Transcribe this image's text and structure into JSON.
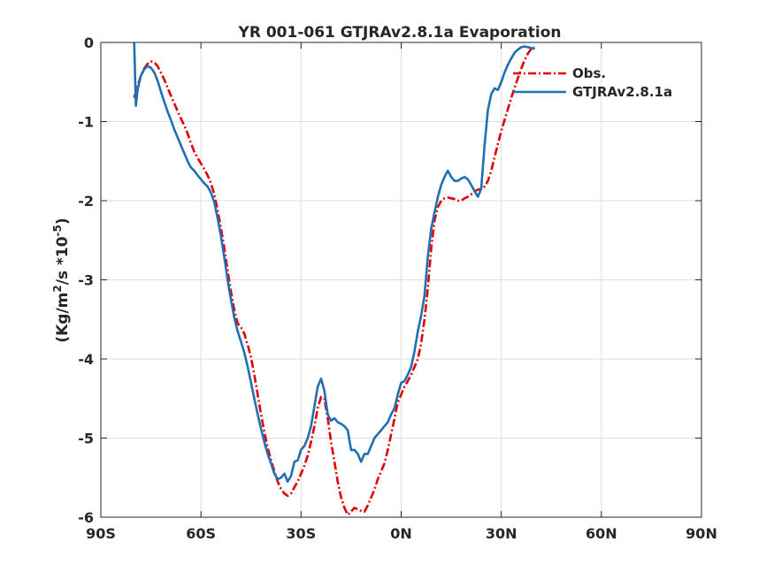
{
  "chart_data": {
    "type": "line",
    "title": "YR 001-061 GTJRAv2.8.1a Evaporation",
    "xlabel": "",
    "ylabel": "(Kg/m",
    "ylabel_sup1": "2",
    "ylabel_mid": "/s *10",
    "ylabel_sup2": "-5",
    "ylabel_end": ")",
    "xlim": [
      -90,
      90
    ],
    "ylim": [
      -6,
      0
    ],
    "x_ticks": [
      -90,
      -60,
      -30,
      0,
      30,
      60,
      90
    ],
    "x_tick_labels": [
      "90S",
      "60S",
      "30S",
      "0N",
      "30N",
      "60N",
      "90N"
    ],
    "y_ticks": [
      -6,
      -5,
      -4,
      -3,
      -2,
      -1,
      0
    ],
    "y_tick_labels": [
      "-6",
      "-5",
      "-4",
      "-3",
      "-2",
      "-1",
      "0"
    ],
    "grid": true,
    "legend_position": "top-right",
    "series": [
      {
        "name": "Obs.",
        "color": "#e00000",
        "dash": "dashdot",
        "points": [
          [
            -80,
            -0.7
          ],
          [
            -79,
            -0.55
          ],
          [
            -78,
            -0.42
          ],
          [
            -77,
            -0.33
          ],
          [
            -76,
            -0.27
          ],
          [
            -75,
            -0.24
          ],
          [
            -74,
            -0.25
          ],
          [
            -73,
            -0.3
          ],
          [
            -72,
            -0.38
          ],
          [
            -71,
            -0.47
          ],
          [
            -70,
            -0.57
          ],
          [
            -69,
            -0.67
          ],
          [
            -68,
            -0.77
          ],
          [
            -67,
            -0.87
          ],
          [
            -66,
            -0.96
          ],
          [
            -65,
            -1.05
          ],
          [
            -64,
            -1.15
          ],
          [
            -63,
            -1.27
          ],
          [
            -62,
            -1.38
          ],
          [
            -61,
            -1.46
          ],
          [
            -60,
            -1.53
          ],
          [
            -59,
            -1.6
          ],
          [
            -58,
            -1.68
          ],
          [
            -57,
            -1.78
          ],
          [
            -56,
            -1.92
          ],
          [
            -55,
            -2.12
          ],
          [
            -54,
            -2.35
          ],
          [
            -53,
            -2.6
          ],
          [
            -52,
            -2.88
          ],
          [
            -51,
            -3.15
          ],
          [
            -50,
            -3.38
          ],
          [
            -49,
            -3.55
          ],
          [
            -48,
            -3.6
          ],
          [
            -47,
            -3.68
          ],
          [
            -46,
            -3.82
          ],
          [
            -45,
            -3.98
          ],
          [
            -44,
            -4.2
          ],
          [
            -43,
            -4.45
          ],
          [
            -42,
            -4.7
          ],
          [
            -41,
            -4.92
          ],
          [
            -40,
            -5.12
          ],
          [
            -39,
            -5.28
          ],
          [
            -38,
            -5.42
          ],
          [
            -37,
            -5.55
          ],
          [
            -36,
            -5.64
          ],
          [
            -35,
            -5.7
          ],
          [
            -34,
            -5.73
          ],
          [
            -33,
            -5.7
          ],
          [
            -32,
            -5.62
          ],
          [
            -31,
            -5.55
          ],
          [
            -30,
            -5.45
          ],
          [
            -29,
            -5.35
          ],
          [
            -28,
            -5.22
          ],
          [
            -27,
            -5.05
          ],
          [
            -26,
            -4.85
          ],
          [
            -25,
            -4.62
          ],
          [
            -24,
            -4.48
          ],
          [
            -23,
            -4.5
          ],
          [
            -22,
            -4.75
          ],
          [
            -21,
            -5.05
          ],
          [
            -20,
            -5.3
          ],
          [
            -19,
            -5.55
          ],
          [
            -18,
            -5.75
          ],
          [
            -17,
            -5.88
          ],
          [
            -16,
            -5.97
          ],
          [
            -15,
            -5.93
          ],
          [
            -14,
            -5.88
          ],
          [
            -13,
            -5.9
          ],
          [
            -12,
            -5.92
          ],
          [
            -11,
            -5.93
          ],
          [
            -10,
            -5.85
          ],
          [
            -9,
            -5.75
          ],
          [
            -8,
            -5.65
          ],
          [
            -7,
            -5.52
          ],
          [
            -6,
            -5.42
          ],
          [
            -5,
            -5.32
          ],
          [
            -4,
            -5.15
          ],
          [
            -3,
            -4.95
          ],
          [
            -2,
            -4.75
          ],
          [
            -1,
            -4.55
          ],
          [
            0,
            -4.45
          ],
          [
            1,
            -4.35
          ],
          [
            2,
            -4.28
          ],
          [
            3,
            -4.2
          ],
          [
            4,
            -4.1
          ],
          [
            5,
            -4.0
          ],
          [
            6,
            -3.8
          ],
          [
            7,
            -3.5
          ],
          [
            8,
            -3.1
          ],
          [
            9,
            -2.6
          ],
          [
            10,
            -2.25
          ],
          [
            11,
            -2.08
          ],
          [
            12,
            -2.0
          ],
          [
            13,
            -1.97
          ],
          [
            14,
            -1.96
          ],
          [
            15,
            -1.97
          ],
          [
            16,
            -1.98
          ],
          [
            17,
            -2.0
          ],
          [
            18,
            -2.0
          ],
          [
            19,
            -1.97
          ],
          [
            20,
            -1.95
          ],
          [
            21,
            -1.92
          ],
          [
            22,
            -1.88
          ],
          [
            23,
            -1.86
          ],
          [
            24,
            -1.85
          ],
          [
            25,
            -1.82
          ],
          [
            26,
            -1.75
          ],
          [
            27,
            -1.62
          ],
          [
            28,
            -1.45
          ],
          [
            29,
            -1.28
          ],
          [
            30,
            -1.12
          ],
          [
            31,
            -0.98
          ],
          [
            32,
            -0.84
          ],
          [
            33,
            -0.7
          ],
          [
            34,
            -0.57
          ],
          [
            35,
            -0.45
          ],
          [
            36,
            -0.33
          ],
          [
            37,
            -0.22
          ],
          [
            38,
            -0.14
          ],
          [
            39,
            -0.08
          ],
          [
            40,
            -0.06
          ]
        ]
      },
      {
        "name": "GTJRAv2.8.1a",
        "color": "#1f6fb4",
        "dash": "solid",
        "points": [
          [
            -80,
            0.0
          ],
          [
            -79.5,
            -0.8
          ],
          [
            -79,
            -0.6
          ],
          [
            -78,
            -0.42
          ],
          [
            -77,
            -0.34
          ],
          [
            -76,
            -0.3
          ],
          [
            -75,
            -0.32
          ],
          [
            -74,
            -0.38
          ],
          [
            -73,
            -0.48
          ],
          [
            -72,
            -0.62
          ],
          [
            -71,
            -0.75
          ],
          [
            -70,
            -0.87
          ],
          [
            -69,
            -0.98
          ],
          [
            -68,
            -1.1
          ],
          [
            -67,
            -1.2
          ],
          [
            -66,
            -1.3
          ],
          [
            -65,
            -1.4
          ],
          [
            -64,
            -1.5
          ],
          [
            -63,
            -1.58
          ],
          [
            -62,
            -1.62
          ],
          [
            -61,
            -1.68
          ],
          [
            -60,
            -1.73
          ],
          [
            -59,
            -1.78
          ],
          [
            -58,
            -1.82
          ],
          [
            -57,
            -1.9
          ],
          [
            -56,
            -2.02
          ],
          [
            -55,
            -2.22
          ],
          [
            -54,
            -2.45
          ],
          [
            -53,
            -2.72
          ],
          [
            -52,
            -3.0
          ],
          [
            -51,
            -3.25
          ],
          [
            -50,
            -3.48
          ],
          [
            -49,
            -3.65
          ],
          [
            -48,
            -3.78
          ],
          [
            -47,
            -3.92
          ],
          [
            -46,
            -4.1
          ],
          [
            -45,
            -4.3
          ],
          [
            -44,
            -4.5
          ],
          [
            -43,
            -4.7
          ],
          [
            -42,
            -4.88
          ],
          [
            -41,
            -5.05
          ],
          [
            -40,
            -5.2
          ],
          [
            -39,
            -5.32
          ],
          [
            -38,
            -5.45
          ],
          [
            -37,
            -5.52
          ],
          [
            -36,
            -5.5
          ],
          [
            -35,
            -5.45
          ],
          [
            -34,
            -5.55
          ],
          [
            -33,
            -5.48
          ],
          [
            -32,
            -5.3
          ],
          [
            -31,
            -5.28
          ],
          [
            -30,
            -5.15
          ],
          [
            -29,
            -5.1
          ],
          [
            -28,
            -5.0
          ],
          [
            -27,
            -4.85
          ],
          [
            -26,
            -4.6
          ],
          [
            -25,
            -4.35
          ],
          [
            -24,
            -4.25
          ],
          [
            -23,
            -4.4
          ],
          [
            -22,
            -4.7
          ],
          [
            -21,
            -4.78
          ],
          [
            -20,
            -4.75
          ],
          [
            -19,
            -4.8
          ],
          [
            -18,
            -4.82
          ],
          [
            -17,
            -4.85
          ],
          [
            -16,
            -4.9
          ],
          [
            -15,
            -5.15
          ],
          [
            -14,
            -5.15
          ],
          [
            -13,
            -5.2
          ],
          [
            -12,
            -5.3
          ],
          [
            -11,
            -5.2
          ],
          [
            -10,
            -5.2
          ],
          [
            -9,
            -5.1
          ],
          [
            -8,
            -5.0
          ],
          [
            -7,
            -4.95
          ],
          [
            -6,
            -4.9
          ],
          [
            -5,
            -4.85
          ],
          [
            -4,
            -4.8
          ],
          [
            -3,
            -4.7
          ],
          [
            -2,
            -4.62
          ],
          [
            -1,
            -4.45
          ],
          [
            0,
            -4.3
          ],
          [
            1,
            -4.28
          ],
          [
            2,
            -4.2
          ],
          [
            3,
            -4.1
          ],
          [
            4,
            -3.9
          ],
          [
            5,
            -3.65
          ],
          [
            6,
            -3.45
          ],
          [
            7,
            -3.2
          ],
          [
            8,
            -2.7
          ],
          [
            9,
            -2.35
          ],
          [
            10,
            -2.15
          ],
          [
            11,
            -1.95
          ],
          [
            12,
            -1.8
          ],
          [
            13,
            -1.7
          ],
          [
            14,
            -1.62
          ],
          [
            15,
            -1.7
          ],
          [
            16,
            -1.75
          ],
          [
            17,
            -1.75
          ],
          [
            18,
            -1.72
          ],
          [
            19,
            -1.7
          ],
          [
            20,
            -1.73
          ],
          [
            21,
            -1.8
          ],
          [
            22,
            -1.88
          ],
          [
            23,
            -1.95
          ],
          [
            24,
            -1.85
          ],
          [
            25,
            -1.3
          ],
          [
            26,
            -0.85
          ],
          [
            27,
            -0.65
          ],
          [
            28,
            -0.58
          ],
          [
            29,
            -0.6
          ],
          [
            30,
            -0.5
          ],
          [
            31,
            -0.38
          ],
          [
            32,
            -0.28
          ],
          [
            33,
            -0.2
          ],
          [
            34,
            -0.13
          ],
          [
            35,
            -0.09
          ],
          [
            36,
            -0.06
          ],
          [
            37,
            -0.05
          ],
          [
            38,
            -0.06
          ],
          [
            39,
            -0.07
          ],
          [
            40,
            -0.08
          ]
        ]
      }
    ]
  }
}
